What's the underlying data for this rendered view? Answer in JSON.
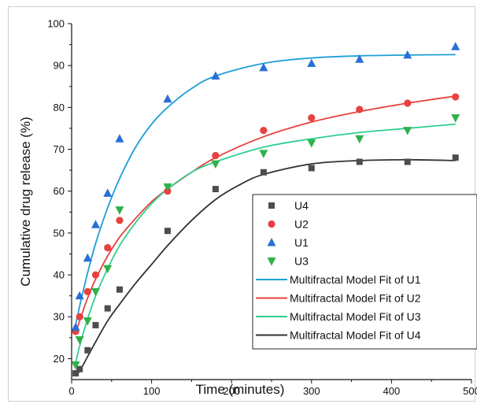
{
  "chart_data": {
    "type": "scatter",
    "title": "",
    "xlabel": "Time (minutes)",
    "ylabel": "Cumulative drug release (%)",
    "xlim": [
      0,
      500
    ],
    "ylim": [
      15,
      100
    ],
    "x_ticks": [
      0,
      100,
      200,
      300,
      400,
      500
    ],
    "y_ticks": [
      20,
      30,
      40,
      50,
      60,
      70,
      80,
      90,
      100
    ],
    "grid": false,
    "legend_position": "bottom-right",
    "series": [
      {
        "name": "U4",
        "marker": "square",
        "color": "#4d4d4d",
        "x": [
          5,
          10,
          20,
          30,
          45,
          60,
          120,
          180,
          240,
          300,
          360,
          420,
          480
        ],
        "y": [
          16.5,
          17.5,
          22,
          28,
          32,
          36.5,
          50.5,
          60.5,
          64.5,
          65.5,
          67,
          67,
          68
        ]
      },
      {
        "name": "U2",
        "marker": "circle",
        "color": "#e8413f",
        "x": [
          5,
          10,
          20,
          30,
          45,
          60,
          120,
          180,
          240,
          300,
          360,
          420,
          480
        ],
        "y": [
          26.5,
          30,
          36,
          40,
          46.5,
          53,
          60,
          68.5,
          74.5,
          77.5,
          79.5,
          81,
          82.5
        ]
      },
      {
        "name": "U1",
        "marker": "triangle-up",
        "color": "#2a6fd6",
        "x": [
          5,
          10,
          20,
          30,
          45,
          60,
          120,
          180,
          240,
          300,
          360,
          420,
          480
        ],
        "y": [
          27.5,
          35,
          44,
          52,
          59.5,
          72.5,
          82,
          87.5,
          89.5,
          90.5,
          91.5,
          92.5,
          94.5
        ]
      },
      {
        "name": "U3",
        "marker": "triangle-down",
        "color": "#2fb14c",
        "x": [
          5,
          10,
          20,
          30,
          45,
          60,
          120,
          180,
          240,
          300,
          360,
          420,
          480
        ],
        "y": [
          18.5,
          24.5,
          29,
          36,
          41.5,
          55.5,
          61,
          66.5,
          69,
          71.5,
          72.5,
          74.5,
          77.5
        ]
      }
    ],
    "fits": [
      {
        "name": "Multifractal Model Fit of U1",
        "color": "#1f9fd8",
        "x": [
          5,
          10,
          20,
          30,
          45,
          60,
          80,
          100,
          120,
          150,
          180,
          240,
          300,
          360,
          420,
          480
        ],
        "y": [
          28,
          32.5,
          40.5,
          47.5,
          56,
          63,
          70.5,
          76,
          80,
          84.5,
          87.5,
          90.5,
          91.8,
          92.3,
          92.5,
          92.6
        ]
      },
      {
        "name": "Multifractal Model Fit of U2",
        "color": "#e8413f",
        "x": [
          5,
          10,
          20,
          30,
          45,
          60,
          80,
          100,
          120,
          150,
          180,
          240,
          300,
          360,
          420,
          480
        ],
        "y": [
          26,
          29,
          34.5,
          39,
          44.5,
          49,
          53.5,
          57.5,
          60.5,
          64.5,
          68,
          73,
          76.5,
          79,
          81,
          82.7
        ]
      },
      {
        "name": "Multifractal Model Fit of U3",
        "color": "#2fcf8f",
        "x": [
          5,
          10,
          20,
          30,
          45,
          60,
          80,
          100,
          120,
          150,
          180,
          240,
          300,
          360,
          420,
          480
        ],
        "y": [
          19,
          23,
          29.5,
          35,
          41.5,
          47,
          52.5,
          57,
          60.5,
          64.5,
          67,
          70.5,
          72.5,
          74,
          75,
          76
        ]
      },
      {
        "name": "Multifractal Model Fit of U4",
        "color": "#333333",
        "x": [
          5,
          10,
          20,
          30,
          45,
          60,
          80,
          100,
          120,
          150,
          180,
          210,
          240,
          300,
          360,
          420,
          480
        ],
        "y": [
          16,
          17,
          20.5,
          24,
          29,
          33,
          38,
          42.5,
          47,
          53,
          58,
          61.5,
          64,
          66.5,
          67.3,
          67.5,
          67.3
        ]
      }
    ]
  }
}
